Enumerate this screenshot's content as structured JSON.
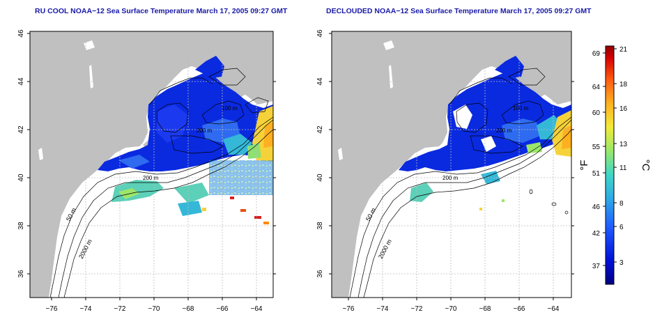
{
  "titles": {
    "left": "RU COOL NOAA−12 Sea Surface Temperature March 17, 2005 09:27 GMT",
    "right": "DECLOUDED NOAA−12 Sea Surface Temperature March 17, 2005 09:27 GMT"
  },
  "axes": {
    "lon_ticks": [
      "−76",
      "−74",
      "−72",
      "−70",
      "−68",
      "−66",
      "−64"
    ],
    "lat_ticks": [
      "36",
      "38",
      "40",
      "42",
      "44",
      "46"
    ]
  },
  "contour_labels": {
    "shelf_50": "50 m",
    "slope_2000": "2000 m",
    "gom_200": "200 m",
    "georges": "200 m",
    "nova_scotia": "100 m"
  },
  "colorbar": {
    "f_label": "°F",
    "c_label": "°C",
    "f_ticks": [
      "69",
      "64",
      "60",
      "55",
      "51",
      "46",
      "42",
      "37"
    ],
    "c_ticks": [
      "21",
      "18",
      "16",
      "13",
      "11",
      "8",
      "6",
      "3"
    ]
  },
  "colors": {
    "land": "#c0c0c0",
    "ocean": "#ffffff",
    "cold": "#0000cc",
    "warm": "#cc0000",
    "grid": "#bdbdbd",
    "title": "#1a1aa8"
  }
}
